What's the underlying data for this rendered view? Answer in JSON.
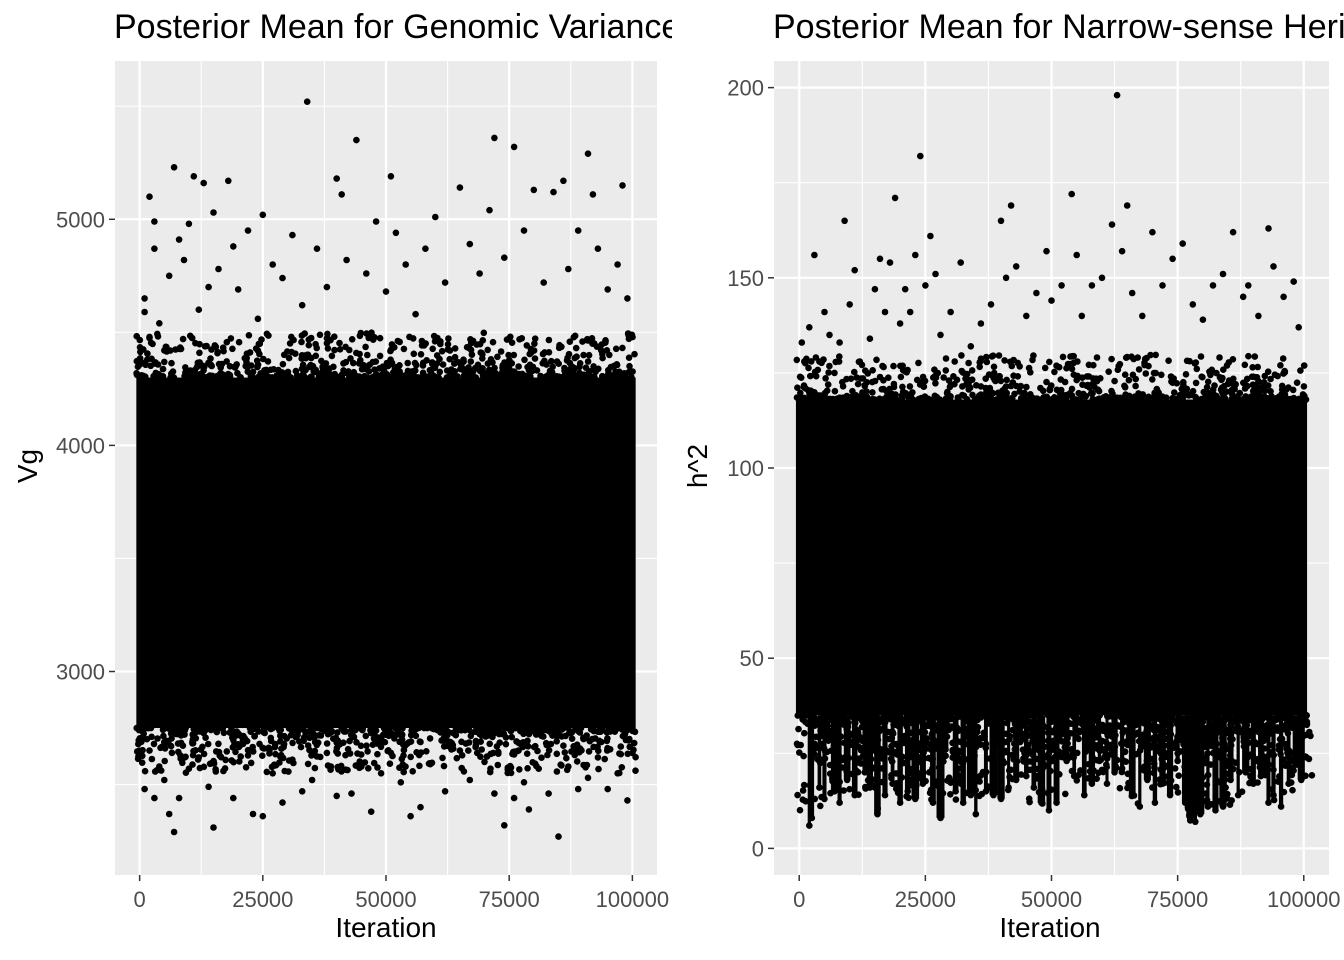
{
  "chart_data": [
    {
      "type": "scatter",
      "title": "Posterior Mean for Genomic Variance",
      "xlabel": "Iteration",
      "ylabel": "Vg",
      "xlim": [
        -5000,
        105000
      ],
      "ylim": [
        2100,
        5700
      ],
      "xticks": [
        0,
        25000,
        50000,
        75000,
        100000
      ],
      "xtick_labels": [
        "0",
        "25000",
        "50000",
        "75000",
        "100000"
      ],
      "yticks": [
        3000,
        4000,
        5000
      ],
      "ytick_labels": [
        "3000",
        "4000",
        "5000"
      ],
      "grid": true,
      "point_color": "#000000",
      "panel_background": "#ebebeb",
      "dense_band": {
        "x": [
          0,
          100000
        ],
        "y": [
          2750,
          4300
        ]
      },
      "points": [
        [
          1000,
          4650
        ],
        [
          1000,
          4590
        ],
        [
          2000,
          4480
        ],
        [
          2000,
          5100
        ],
        [
          3000,
          4990
        ],
        [
          3000,
          4870
        ],
        [
          4000,
          4540
        ],
        [
          5000,
          4420
        ],
        [
          6000,
          4750
        ],
        [
          7000,
          5230
        ],
        [
          8000,
          4910
        ],
        [
          9000,
          4820
        ],
        [
          10000,
          4980
        ],
        [
          11000,
          5190
        ],
        [
          12000,
          4600
        ],
        [
          13000,
          5160
        ],
        [
          14000,
          4700
        ],
        [
          15000,
          5030
        ],
        [
          16000,
          4780
        ],
        [
          18000,
          5170
        ],
        [
          19000,
          4880
        ],
        [
          20000,
          4690
        ],
        [
          22000,
          4950
        ],
        [
          24000,
          4560
        ],
        [
          25000,
          5020
        ],
        [
          27000,
          4800
        ],
        [
          29000,
          4740
        ],
        [
          31000,
          4930
        ],
        [
          33000,
          4620
        ],
        [
          34000,
          5520
        ],
        [
          36000,
          4870
        ],
        [
          38000,
          4700
        ],
        [
          40000,
          5180
        ],
        [
          41000,
          5110
        ],
        [
          42000,
          4820
        ],
        [
          44000,
          5350
        ],
        [
          46000,
          4760
        ],
        [
          48000,
          4990
        ],
        [
          50000,
          4680
        ],
        [
          51000,
          5190
        ],
        [
          52000,
          4940
        ],
        [
          54000,
          4800
        ],
        [
          56000,
          4580
        ],
        [
          58000,
          4870
        ],
        [
          60000,
          5010
        ],
        [
          62000,
          4720
        ],
        [
          65000,
          5140
        ],
        [
          67000,
          4890
        ],
        [
          69000,
          4760
        ],
        [
          71000,
          5040
        ],
        [
          72000,
          5360
        ],
        [
          74000,
          4830
        ],
        [
          76000,
          5320
        ],
        [
          78000,
          4950
        ],
        [
          80000,
          5130
        ],
        [
          82000,
          4720
        ],
        [
          84000,
          5120
        ],
        [
          86000,
          5170
        ],
        [
          87000,
          4780
        ],
        [
          89000,
          4950
        ],
        [
          91000,
          5290
        ],
        [
          92000,
          5110
        ],
        [
          93000,
          4870
        ],
        [
          95000,
          4690
        ],
        [
          97000,
          4800
        ],
        [
          98000,
          5150
        ],
        [
          99000,
          4650
        ],
        [
          1000,
          2480
        ],
        [
          2000,
          2650
        ],
        [
          3000,
          2440
        ],
        [
          4000,
          2580
        ],
        [
          5000,
          2520
        ],
        [
          6000,
          2370
        ],
        [
          7000,
          2290
        ],
        [
          8000,
          2440
        ],
        [
          10000,
          2570
        ],
        [
          12000,
          2620
        ],
        [
          14000,
          2490
        ],
        [
          15000,
          2310
        ],
        [
          17000,
          2560
        ],
        [
          19000,
          2440
        ],
        [
          21000,
          2680
        ],
        [
          23000,
          2370
        ],
        [
          25000,
          2360
        ],
        [
          27000,
          2550
        ],
        [
          29000,
          2420
        ],
        [
          31000,
          2610
        ],
        [
          33000,
          2470
        ],
        [
          35000,
          2520
        ],
        [
          38000,
          2640
        ],
        [
          40000,
          2450
        ],
        [
          43000,
          2460
        ],
        [
          45000,
          2580
        ],
        [
          47000,
          2380
        ],
        [
          49000,
          2550
        ],
        [
          51000,
          2640
        ],
        [
          53000,
          2510
        ],
        [
          55000,
          2360
        ],
        [
          57000,
          2400
        ],
        [
          59000,
          2590
        ],
        [
          62000,
          2470
        ],
        [
          65000,
          2650
        ],
        [
          67000,
          2520
        ],
        [
          70000,
          2600
        ],
        [
          72000,
          2460
        ],
        [
          74000,
          2320
        ],
        [
          76000,
          2440
        ],
        [
          78000,
          2510
        ],
        [
          79000,
          2390
        ],
        [
          81000,
          2570
        ],
        [
          83000,
          2460
        ],
        [
          85000,
          2270
        ],
        [
          87000,
          2580
        ],
        [
          89000,
          2480
        ],
        [
          91000,
          2530
        ],
        [
          93000,
          2620
        ],
        [
          95000,
          2480
        ],
        [
          97000,
          2550
        ],
        [
          99000,
          2430
        ]
      ]
    },
    {
      "type": "scatter",
      "title": "Posterior Mean for Narrow-sense Heritability",
      "xlabel": "Iteration",
      "ylabel": "h^2",
      "xlim": [
        -5000,
        105000
      ],
      "ylim": [
        -7,
        207
      ],
      "xticks": [
        0,
        25000,
        50000,
        75000,
        100000
      ],
      "xtick_labels": [
        "0",
        "25000",
        "50000",
        "75000",
        "100000"
      ],
      "yticks": [
        0,
        50,
        100,
        150,
        200
      ],
      "ytick_labels": [
        "0",
        "50",
        "100",
        "150",
        "200"
      ],
      "grid": true,
      "point_color": "#000000",
      "panel_background": "#ebebeb",
      "dense_band": {
        "x": [
          0,
          100000
        ],
        "y": [
          35,
          118
        ]
      },
      "points": [
        [
          500,
          133
        ],
        [
          1000,
          128
        ],
        [
          2000,
          137
        ],
        [
          3000,
          156
        ],
        [
          4000,
          128
        ],
        [
          5000,
          141
        ],
        [
          6000,
          135
        ],
        [
          7000,
          125
        ],
        [
          8000,
          133
        ],
        [
          9000,
          165
        ],
        [
          10000,
          143
        ],
        [
          11000,
          152
        ],
        [
          12000,
          128
        ],
        [
          14000,
          134
        ],
        [
          15000,
          147
        ],
        [
          16000,
          155
        ],
        [
          17000,
          141
        ],
        [
          18000,
          154
        ],
        [
          19000,
          171
        ],
        [
          20000,
          138
        ],
        [
          21000,
          147
        ],
        [
          22000,
          141
        ],
        [
          23000,
          156
        ],
        [
          24000,
          182
        ],
        [
          25000,
          148
        ],
        [
          26000,
          161
        ],
        [
          27000,
          151
        ],
        [
          28000,
          135
        ],
        [
          30000,
          141
        ],
        [
          32000,
          154
        ],
        [
          34000,
          132
        ],
        [
          36000,
          138
        ],
        [
          38000,
          143
        ],
        [
          40000,
          165
        ],
        [
          41000,
          150
        ],
        [
          42000,
          169
        ],
        [
          43000,
          153
        ],
        [
          45000,
          140
        ],
        [
          47000,
          146
        ],
        [
          49000,
          157
        ],
        [
          50000,
          144
        ],
        [
          52000,
          148
        ],
        [
          54000,
          172
        ],
        [
          55000,
          156
        ],
        [
          56000,
          140
        ],
        [
          58000,
          148
        ],
        [
          60000,
          150
        ],
        [
          62000,
          164
        ],
        [
          63000,
          198
        ],
        [
          64000,
          157
        ],
        [
          65000,
          169
        ],
        [
          66000,
          146
        ],
        [
          68000,
          140
        ],
        [
          70000,
          162
        ],
        [
          72000,
          148
        ],
        [
          74000,
          155
        ],
        [
          76000,
          159
        ],
        [
          78000,
          143
        ],
        [
          80000,
          139
        ],
        [
          82000,
          148
        ],
        [
          84000,
          151
        ],
        [
          86000,
          162
        ],
        [
          88000,
          145
        ],
        [
          89000,
          148
        ],
        [
          91000,
          140
        ],
        [
          93000,
          163
        ],
        [
          94000,
          153
        ],
        [
          96000,
          145
        ],
        [
          98000,
          149
        ],
        [
          99000,
          137
        ]
      ],
      "low_spikes": [
        [
          2000,
          6
        ],
        [
          2500,
          8
        ],
        [
          4000,
          16
        ],
        [
          5000,
          13
        ],
        [
          7000,
          15
        ],
        [
          8000,
          12
        ],
        [
          9500,
          18
        ],
        [
          11000,
          14
        ],
        [
          13000,
          20
        ],
        [
          14000,
          16
        ],
        [
          15500,
          9
        ],
        [
          17000,
          14
        ],
        [
          18500,
          17
        ],
        [
          20000,
          12
        ],
        [
          21500,
          15
        ],
        [
          23000,
          13
        ],
        [
          24500,
          17
        ],
        [
          26500,
          12
        ],
        [
          28000,
          8
        ],
        [
          29000,
          26
        ],
        [
          31000,
          15
        ],
        [
          32500,
          12
        ],
        [
          34000,
          14
        ],
        [
          35000,
          9
        ],
        [
          37000,
          15
        ],
        [
          38500,
          14
        ],
        [
          40000,
          13
        ],
        [
          41500,
          16
        ],
        [
          43000,
          18
        ],
        [
          45000,
          19
        ],
        [
          46500,
          16
        ],
        [
          48000,
          12
        ],
        [
          49500,
          10
        ],
        [
          51000,
          12
        ],
        [
          53000,
          23
        ],
        [
          54500,
          19
        ],
        [
          56500,
          14
        ],
        [
          58000,
          17
        ],
        [
          59500,
          23
        ],
        [
          61000,
          17
        ],
        [
          62500,
          20
        ],
        [
          64000,
          21
        ],
        [
          66000,
          14
        ],
        [
          67500,
          11
        ],
        [
          69000,
          18
        ],
        [
          70500,
          12
        ],
        [
          72000,
          17
        ],
        [
          73500,
          14
        ],
        [
          75000,
          23
        ],
        [
          76500,
          12
        ],
        [
          77500,
          8
        ],
        [
          78500,
          7
        ],
        [
          79500,
          9
        ],
        [
          81000,
          11
        ],
        [
          82500,
          10
        ],
        [
          84000,
          11
        ],
        [
          85500,
          18
        ],
        [
          87000,
          14
        ],
        [
          88500,
          20
        ],
        [
          90000,
          17
        ],
        [
          91500,
          19
        ],
        [
          93000,
          12
        ],
        [
          94000,
          14
        ],
        [
          95500,
          11
        ],
        [
          97000,
          17
        ],
        [
          98500,
          22
        ],
        [
          99500,
          18
        ]
      ]
    }
  ]
}
